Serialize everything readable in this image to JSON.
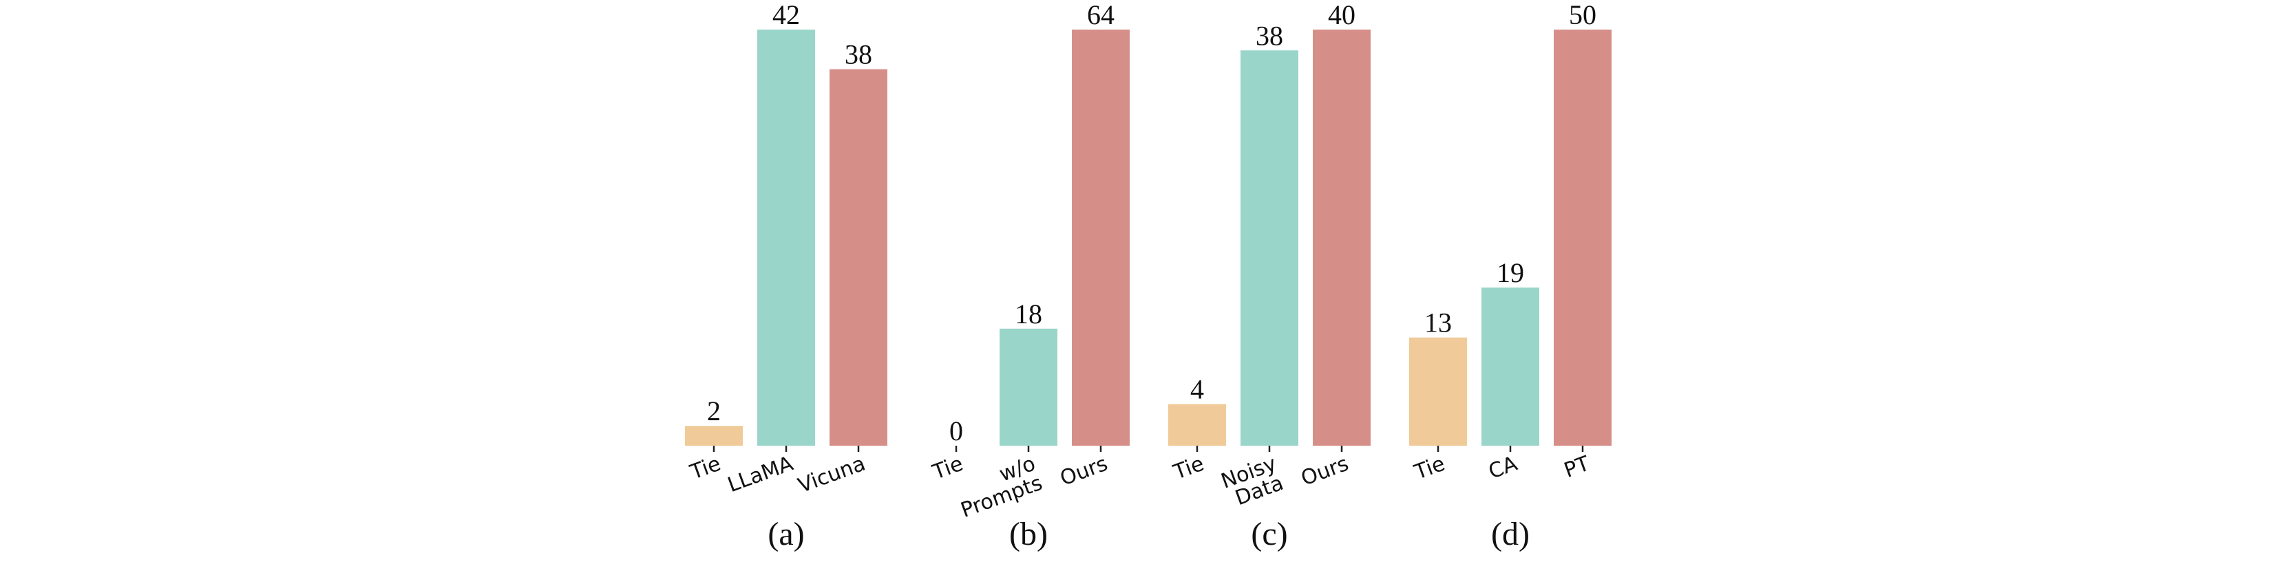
{
  "colors": {
    "tie": "#f0cb99",
    "teal": "#9ad5c9",
    "red": "#d68f88"
  },
  "chart_data": [
    {
      "type": "bar",
      "panel_label": "(a)",
      "categories": [
        "Tie",
        "LLaMA",
        "Vicuna"
      ],
      "values": [
        2,
        42,
        38
      ],
      "ylim": [
        0,
        42
      ]
    },
    {
      "type": "bar",
      "panel_label": "(b)",
      "categories": [
        "Tie",
        "w/o\nPrompts",
        "Ours"
      ],
      "values": [
        0,
        18,
        64
      ],
      "ylim": [
        0,
        64
      ]
    },
    {
      "type": "bar",
      "panel_label": "(c)",
      "categories": [
        "Tie",
        "Noisy\nData",
        "Ours"
      ],
      "values": [
        4,
        38,
        40
      ],
      "ylim": [
        0,
        40
      ]
    },
    {
      "type": "bar",
      "panel_label": "(d)",
      "categories": [
        "Tie",
        "CA",
        "PT"
      ],
      "values": [
        13,
        19,
        50
      ],
      "ylim": [
        0,
        50
      ]
    }
  ]
}
